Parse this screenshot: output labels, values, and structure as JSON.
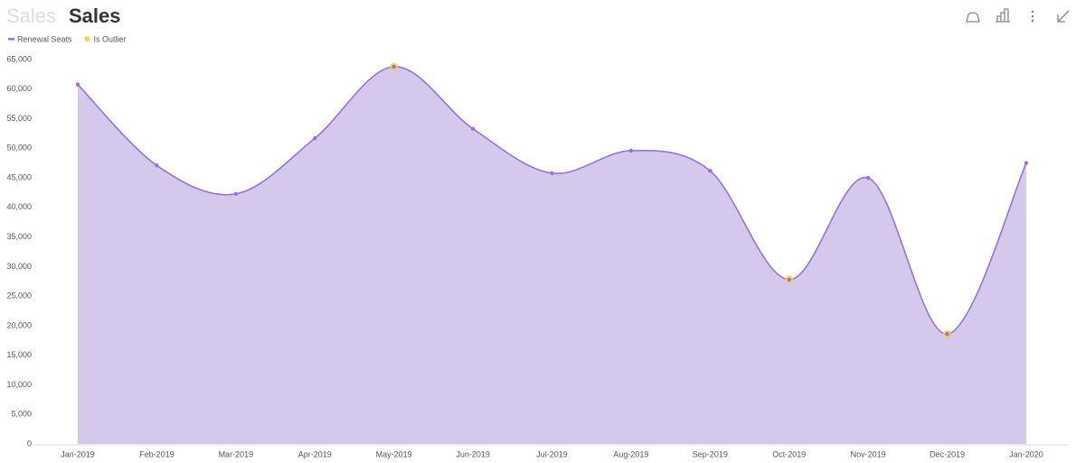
{
  "chart_data": {
    "type": "area",
    "breadcrumb": "Sales",
    "title": "Sales",
    "categories": [
      "Jan-2019",
      "Feb-2019",
      "Mar-2019",
      "Apr-2019",
      "May-2019",
      "Jun-2019",
      "Jul-2019",
      "Aug-2019",
      "Sep-2019",
      "Oct-2019",
      "Nov-2019",
      "Dec-2019",
      "Jan-2020"
    ],
    "series": [
      {
        "name": "Renewal Seats",
        "color": "#9575cd",
        "fill": "#d4c9ec",
        "values": [
          60800,
          47100,
          42300,
          51700,
          63800,
          53300,
          45800,
          49600,
          46200,
          27800,
          45000,
          18600,
          47500
        ]
      },
      {
        "name": "Is Outlier",
        "color": "#f5d04a",
        "values": [
          null,
          null,
          null,
          null,
          63800,
          null,
          null,
          null,
          null,
          27800,
          null,
          18600,
          null
        ]
      }
    ],
    "ylim": [
      0,
      65000
    ],
    "yticks": [
      0,
      {
        "value": 5000,
        "label": "5,000"
      },
      {
        "value": 10000,
        "label": "10,000"
      },
      {
        "value": 15000,
        "label": "15,000"
      },
      {
        "value": 20000,
        "label": "20,000"
      },
      {
        "value": 25000,
        "label": "25,000"
      },
      {
        "value": 30000,
        "label": "30,000"
      },
      {
        "value": 35000,
        "label": "35,000"
      },
      {
        "value": 40000,
        "label": "40,000"
      },
      {
        "value": 45000,
        "label": "45,000"
      },
      {
        "value": 50000,
        "label": "50,000"
      },
      {
        "value": 55000,
        "label": "55,000"
      },
      {
        "value": 60000,
        "label": "60,000"
      },
      {
        "value": 65000,
        "label": "65,000"
      }
    ],
    "grid": false
  }
}
